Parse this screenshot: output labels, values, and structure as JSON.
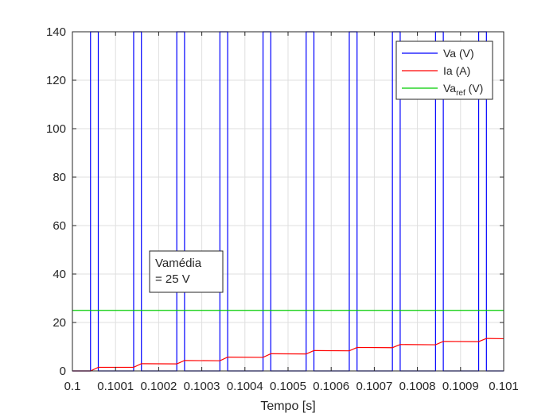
{
  "chart_data": {
    "type": "line",
    "title": "",
    "xlabel": "Tempo [s]",
    "ylabel": "",
    "xlim": [
      0.1,
      0.101
    ],
    "ylim": [
      0,
      140
    ],
    "xticks": [
      0.1,
      0.1001,
      0.1002,
      0.1003,
      0.1004,
      0.1005,
      0.1006,
      0.1007,
      0.1008,
      0.1009,
      0.101
    ],
    "xtick_labels": [
      "0.1",
      "0.1001",
      "0.1002",
      "0.1003",
      "0.1004",
      "0.1005",
      "0.1006",
      "0.1007",
      "0.1008",
      "0.1009",
      "0.101"
    ],
    "yticks": [
      0,
      20,
      40,
      60,
      80,
      100,
      120,
      140
    ],
    "ytick_labels": [
      "0",
      "20",
      "40",
      "60",
      "80",
      "100",
      "120",
      "140"
    ],
    "grid": true,
    "legend_position": "top-right",
    "series": [
      {
        "name": "Va (V)",
        "name_main": "Va",
        "name_sub": "",
        "name_suffix": " (V)",
        "color": "#0000ff",
        "kind": "pwm",
        "period": 0.0001,
        "pulse_on_offset": 4.2e-05,
        "pulse_width": 1.8e-05,
        "high": 140,
        "low": 0
      },
      {
        "name": "Ia (A)",
        "name_main": "Ia",
        "name_sub": "",
        "name_suffix": " (A)",
        "color": "#ff0000",
        "kind": "step_ripple",
        "x": [
          0.1,
          0.100042,
          0.10006,
          0.100142,
          0.10016,
          0.100242,
          0.10026,
          0.100342,
          0.10036,
          0.100442,
          0.10046,
          0.100542,
          0.10056,
          0.100642,
          0.10066,
          0.100742,
          0.10076,
          0.100842,
          0.10086,
          0.100942,
          0.10096,
          0.101
        ],
        "y": [
          0,
          0,
          1.5,
          1.5,
          3.0,
          2.9,
          4.3,
          4.2,
          5.7,
          5.6,
          7.1,
          7.0,
          8.4,
          8.3,
          9.7,
          9.6,
          10.9,
          10.8,
          12.2,
          12.1,
          13.4,
          13.3
        ]
      },
      {
        "name": "Va_ref (V)",
        "name_main": "Va",
        "name_sub": "ref",
        "name_suffix": " (V)",
        "color": "#00cc00",
        "kind": "constant",
        "value": 25
      }
    ],
    "annotation": {
      "lines": [
        "Vamédia",
        "= 25 V"
      ]
    }
  }
}
